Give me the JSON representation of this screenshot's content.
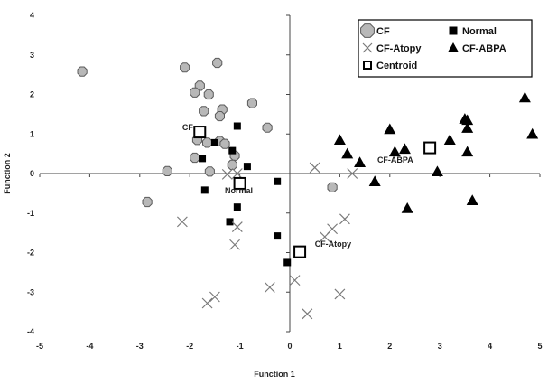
{
  "chart_data": {
    "type": "scatter",
    "title": "",
    "xlabel": "Function 1",
    "ylabel": "Function 2",
    "xlim": [
      -5,
      5
    ],
    "ylim": [
      -4,
      4
    ],
    "xticks": [
      -5,
      -4,
      -3,
      -2,
      -1,
      0,
      1,
      2,
      3,
      4,
      5
    ],
    "yticks": [
      -4,
      -3,
      -2,
      -1,
      0,
      1,
      2,
      3,
      4
    ],
    "grid": false,
    "legend_position": "top-right",
    "series": [
      {
        "name": "CF",
        "marker": "octagon",
        "color": "#b3b3b3",
        "points": [
          [
            -4.15,
            2.58
          ],
          [
            -2.1,
            2.68
          ],
          [
            -1.45,
            2.8
          ],
          [
            -1.8,
            2.22
          ],
          [
            -1.9,
            2.05
          ],
          [
            -1.62,
            2.0
          ],
          [
            -0.75,
            1.78
          ],
          [
            -1.72,
            1.58
          ],
          [
            -1.35,
            1.62
          ],
          [
            -1.4,
            1.45
          ],
          [
            -0.45,
            1.16
          ],
          [
            -1.85,
            0.85
          ],
          [
            -1.65,
            0.78
          ],
          [
            -1.4,
            0.82
          ],
          [
            -1.3,
            0.75
          ],
          [
            -1.9,
            0.4
          ],
          [
            -1.1,
            0.45
          ],
          [
            -1.15,
            0.22
          ],
          [
            -1.6,
            0.05
          ],
          [
            -2.45,
            0.06
          ],
          [
            -2.85,
            -0.72
          ],
          [
            0.85,
            -0.35
          ]
        ]
      },
      {
        "name": "Normal",
        "marker": "square",
        "color": "#000000",
        "points": [
          [
            -1.05,
            1.2
          ],
          [
            -1.5,
            0.78
          ],
          [
            -1.15,
            0.58
          ],
          [
            -1.75,
            0.38
          ],
          [
            -0.85,
            0.18
          ],
          [
            -1.7,
            -0.42
          ],
          [
            -0.25,
            -0.2
          ],
          [
            -1.05,
            -0.85
          ],
          [
            -1.2,
            -1.22
          ],
          [
            -0.25,
            -1.58
          ],
          [
            -0.05,
            -2.25
          ]
        ]
      },
      {
        "name": "CF-Atopy",
        "marker": "x",
        "color": "#777777",
        "points": [
          [
            -1.25,
            -0.02
          ],
          [
            -1.05,
            0.0
          ],
          [
            0.5,
            0.15
          ],
          [
            1.25,
            0.0
          ],
          [
            -2.15,
            -1.22
          ],
          [
            -1.05,
            -1.35
          ],
          [
            -1.1,
            -1.8
          ],
          [
            1.1,
            -1.15
          ],
          [
            0.85,
            -1.4
          ],
          [
            0.7,
            -1.6
          ],
          [
            -0.4,
            -2.88
          ],
          [
            0.1,
            -2.7
          ],
          [
            1.0,
            -3.05
          ],
          [
            -1.5,
            -3.12
          ],
          [
            -1.65,
            -3.28
          ],
          [
            0.35,
            -3.55
          ]
        ]
      },
      {
        "name": "CF-ABPA",
        "marker": "triangle",
        "color": "#000000",
        "points": [
          [
            1.0,
            0.85
          ],
          [
            1.15,
            0.5
          ],
          [
            1.4,
            0.28
          ],
          [
            1.7,
            -0.2
          ],
          [
            2.0,
            1.12
          ],
          [
            2.1,
            0.55
          ],
          [
            2.3,
            0.62
          ],
          [
            2.35,
            -0.88
          ],
          [
            2.95,
            0.05
          ],
          [
            3.2,
            0.85
          ],
          [
            3.5,
            1.38
          ],
          [
            3.55,
            1.35
          ],
          [
            3.55,
            1.15
          ],
          [
            3.55,
            0.55
          ],
          [
            3.65,
            -0.68
          ],
          [
            4.7,
            1.92
          ],
          [
            4.85,
            1.0
          ]
        ]
      },
      {
        "name": "Centroid",
        "marker": "open-square",
        "color": "#000000",
        "points": [
          [
            -1.8,
            1.05
          ],
          [
            -1.0,
            -0.25
          ],
          [
            0.2,
            -1.98
          ],
          [
            2.8,
            0.65
          ]
        ]
      }
    ],
    "annotations": [
      {
        "text": "CF",
        "x": -2.15,
        "y": 1.1
      },
      {
        "text": "Normal",
        "x": -1.3,
        "y": -0.5
      },
      {
        "text": "CF-Atopy",
        "x": 0.5,
        "y": -1.85
      },
      {
        "text": "CF-ABPA",
        "x": 1.75,
        "y": 0.28
      }
    ],
    "legend": [
      {
        "label": "CF",
        "marker": "octagon"
      },
      {
        "label": "Normal",
        "marker": "square"
      },
      {
        "label": "CF-Atopy",
        "marker": "x"
      },
      {
        "label": "CF-ABPA",
        "marker": "triangle"
      },
      {
        "label": "Centroid",
        "marker": "open-square"
      }
    ]
  }
}
